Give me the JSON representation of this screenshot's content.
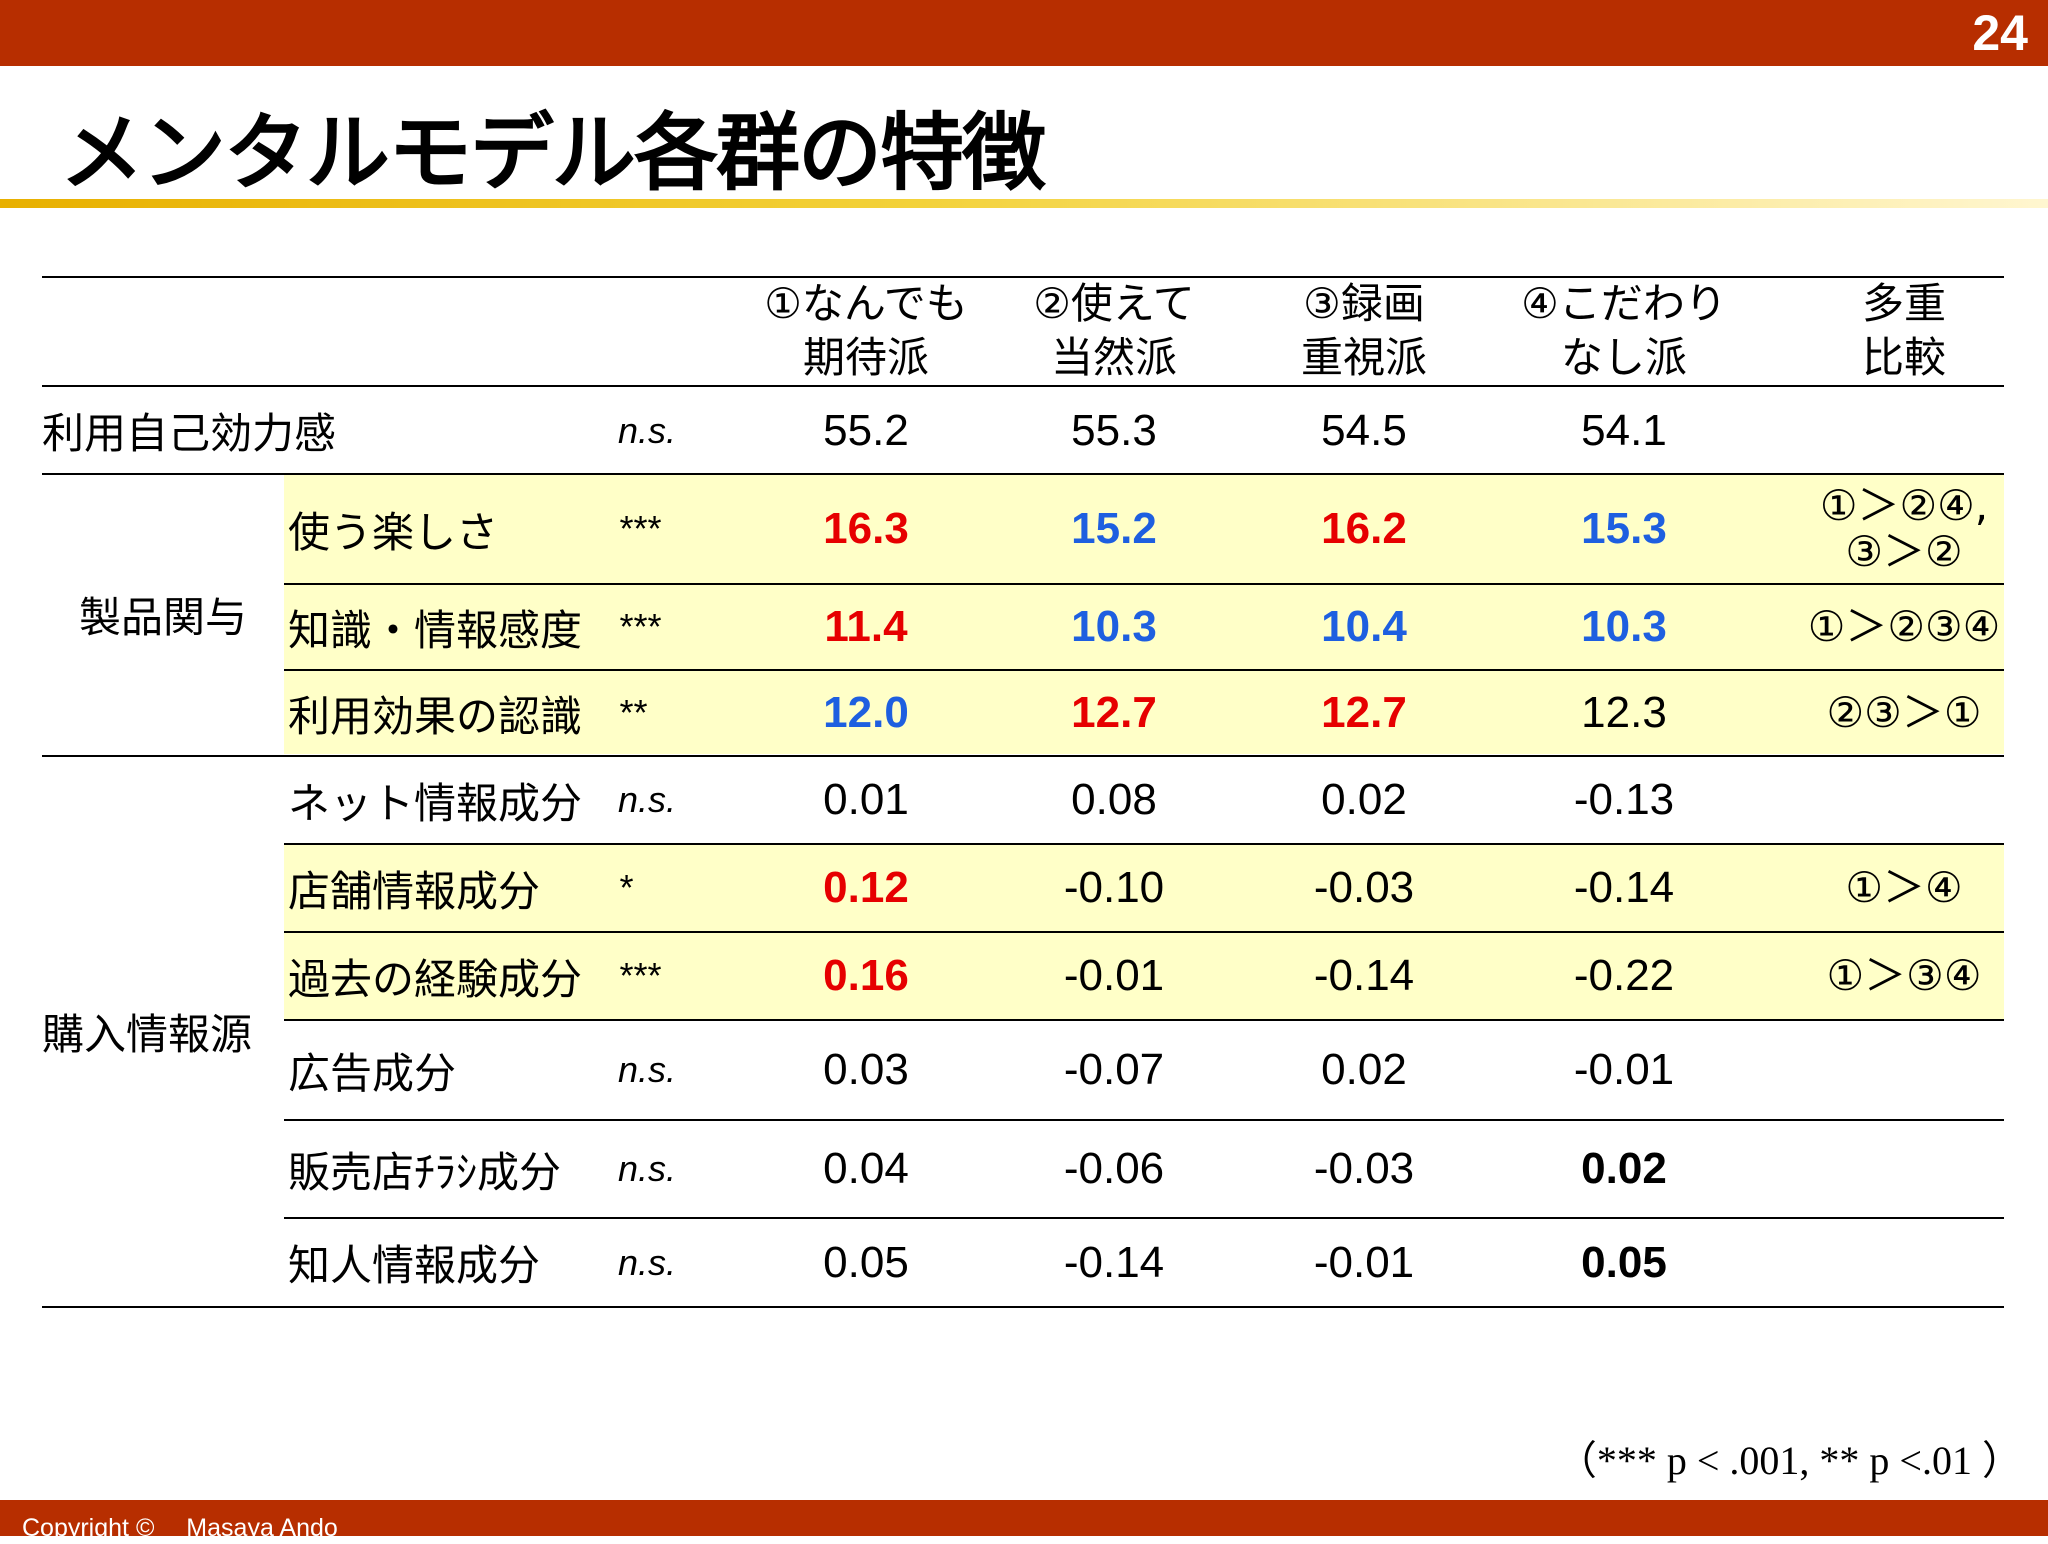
{
  "header": {
    "page_number": "24"
  },
  "title": "メンタルモデル各群の特徴",
  "columns": [
    {
      "line1": "①なんでも",
      "line2": "期待派"
    },
    {
      "line1": "②使えて",
      "line2": "当然派"
    },
    {
      "line1": "③録画",
      "line2": "重視派"
    },
    {
      "line1": "④こだわり",
      "line2": "なし派"
    },
    {
      "line1": "多重",
      "line2": "比較"
    }
  ],
  "groups": {
    "product": "製品関与",
    "info": "購入情報源"
  },
  "rows": [
    {
      "label": "利用自己効力感",
      "sig": "n.s.",
      "values": [
        "55.2",
        "55.3",
        "54.5",
        "54.1"
      ],
      "styles": [
        "",
        "",
        "",
        ""
      ],
      "comparison": [
        "",
        ""
      ],
      "highlight": false
    },
    {
      "label": "使う楽しさ",
      "sig": "***",
      "values": [
        "16.3",
        "15.2",
        "16.2",
        "15.3"
      ],
      "styles": [
        "red",
        "blue",
        "red",
        "blue"
      ],
      "comparison": [
        "①＞②④,",
        "③＞②"
      ],
      "highlight": true
    },
    {
      "label": "知識・情報感度",
      "sig": "***",
      "values": [
        "11.4",
        "10.3",
        "10.4",
        "10.3"
      ],
      "styles": [
        "red",
        "blue",
        "blue",
        "blue"
      ],
      "comparison": [
        "①＞②③④",
        ""
      ],
      "highlight": true
    },
    {
      "label": "利用効果の認識",
      "sig": "**",
      "values": [
        "12.0",
        "12.7",
        "12.7",
        "12.3"
      ],
      "styles": [
        "blue",
        "red",
        "red",
        ""
      ],
      "comparison": [
        "②③＞①",
        ""
      ],
      "highlight": true
    },
    {
      "label": "ネット情報成分",
      "sig": "n.s.",
      "values": [
        "0.01",
        "0.08",
        "0.02",
        "-0.13"
      ],
      "styles": [
        "",
        "",
        "",
        ""
      ],
      "comparison": [
        "",
        ""
      ],
      "highlight": false
    },
    {
      "label": "店舗情報成分",
      "sig": "*",
      "values": [
        "0.12",
        "-0.10",
        "-0.03",
        "-0.14"
      ],
      "styles": [
        "red",
        "",
        "",
        ""
      ],
      "comparison": [
        "①＞④",
        ""
      ],
      "highlight": true
    },
    {
      "label": "過去の経験成分",
      "sig": "***",
      "values": [
        "0.16",
        "-0.01",
        "-0.14",
        "-0.22"
      ],
      "styles": [
        "red",
        "",
        "",
        ""
      ],
      "comparison": [
        "①＞③④",
        ""
      ],
      "highlight": true
    },
    {
      "label": "広告成分",
      "sig": "n.s.",
      "values": [
        "0.03",
        "-0.07",
        "0.02",
        "-0.01"
      ],
      "styles": [
        "",
        "",
        "",
        ""
      ],
      "comparison": [
        "",
        ""
      ],
      "highlight": false
    },
    {
      "label": "販売店ﾁﾗｼ成分",
      "sig": "n.s.",
      "values": [
        "0.04",
        "-0.06",
        "-0.03",
        "0.02"
      ],
      "styles": [
        "",
        "",
        "",
        "bold"
      ],
      "comparison": [
        "",
        ""
      ],
      "highlight": false
    },
    {
      "label": "知人情報成分",
      "sig": "n.s.",
      "values": [
        "0.05",
        "-0.14",
        "-0.01",
        "0.05"
      ],
      "styles": [
        "",
        "",
        "",
        "bold"
      ],
      "comparison": [
        "",
        ""
      ],
      "highlight": false
    }
  ],
  "footnote": "（*** p < .001, ** p <.01 ）",
  "copyright": "Copyright ©　 Masaya Ando"
}
